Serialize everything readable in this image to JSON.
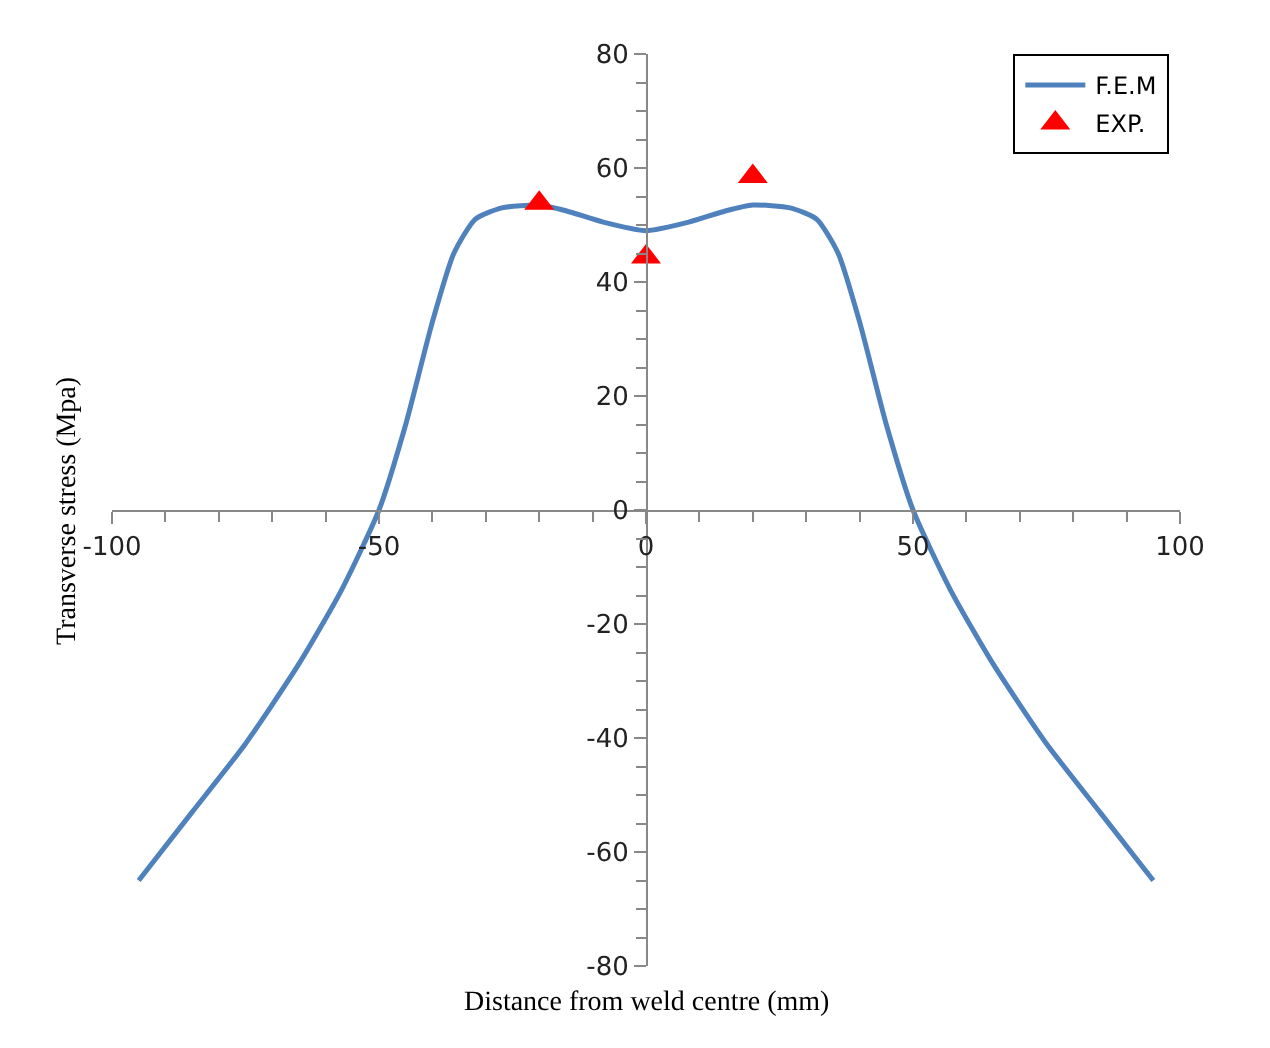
{
  "chart_data": {
    "type": "line",
    "xlabel": "Distance from weld centre (mm)",
    "ylabel": "Transverse stress (Mpa)",
    "xlim": [
      -100,
      100
    ],
    "xticks": [
      -100,
      -50,
      0,
      50,
      100
    ],
    "ylim": [
      -80,
      80
    ],
    "yticks": [
      -80,
      -60,
      -40,
      -20,
      0,
      20,
      40,
      60,
      80
    ],
    "grid": false,
    "legend": "top right",
    "series": [
      {
        "name": "F.E.M",
        "color": "#4f81bd",
        "marker": "none",
        "line_style": "solid",
        "x": [
          -95,
          -85,
          -75,
          -65,
          -57,
          -50,
          -45,
          -40,
          -36,
          -32,
          -27,
          -20,
          -15,
          -8,
          0,
          8,
          15,
          20,
          27,
          32,
          36,
          40,
          45,
          50,
          57,
          65,
          75,
          85,
          95
        ],
        "values": [
          -65,
          -53,
          -41,
          -27,
          -14,
          0,
          15,
          33,
          45,
          51,
          53,
          53.5,
          52.5,
          50.5,
          49,
          50.5,
          52.5,
          53.5,
          53,
          51,
          45,
          33,
          15,
          0,
          -14,
          -27,
          -41,
          -53,
          -65
        ]
      },
      {
        "name": "EXP.",
        "type": "scatter",
        "color": "#ff0000",
        "marker": "triangle",
        "x": [
          -20,
          0,
          20
        ],
        "values": [
          53.8,
          44.4,
          58.5
        ]
      }
    ]
  }
}
